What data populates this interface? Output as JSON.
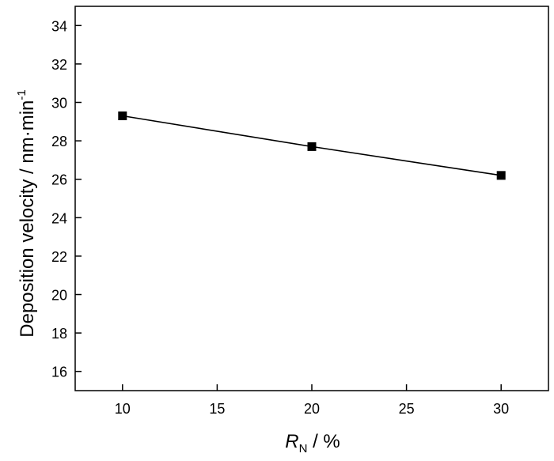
{
  "chart_data": {
    "type": "line",
    "title": "",
    "x": [
      10,
      20,
      30
    ],
    "series": [
      {
        "values": [
          29.3,
          27.7,
          26.2
        ],
        "color": "#000000",
        "marker": "square",
        "line": "solid"
      }
    ],
    "xlabel": {
      "main": "R",
      "subscript": "N",
      "unit": " / %"
    },
    "ylabel": {
      "main": "Deposition velocity / nm·min",
      "superscript": "-1"
    },
    "xlim": [
      7.5,
      32.5
    ],
    "ylim": [
      15,
      35
    ],
    "xticks": [
      10,
      15,
      20,
      25,
      30
    ],
    "yticks": [
      16,
      18,
      20,
      22,
      24,
      26,
      28,
      30,
      32,
      34
    ],
    "grid": false,
    "legend": "none"
  }
}
